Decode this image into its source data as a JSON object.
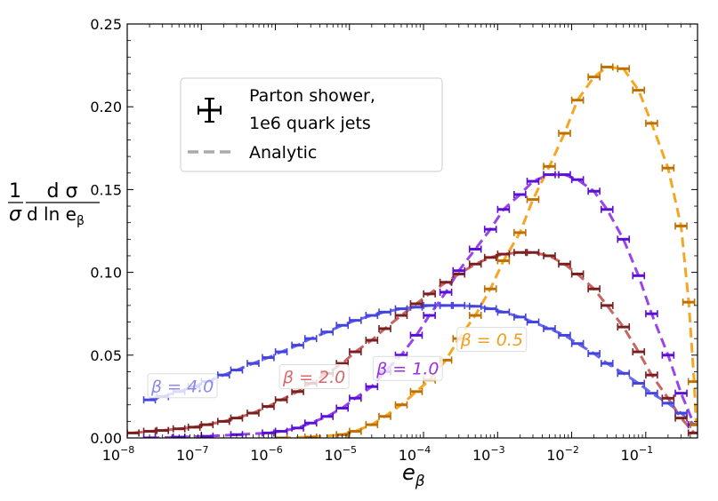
{
  "chart_data": {
    "type": "line",
    "xscale": "log",
    "xlim": [
      1e-08,
      0.5
    ],
    "ylim": [
      0,
      0.25
    ],
    "ylabel": {
      "top": "1",
      "bottom": "σ",
      "numerator": "d σ",
      "denominator": "d ln e",
      "sub": "β"
    },
    "xlabel": {
      "main": "e",
      "sub": "β"
    },
    "xticks": [
      {
        "v": 1e-08,
        "label": "10",
        "exp": "−8"
      },
      {
        "v": 1e-07,
        "label": "10",
        "exp": "−7"
      },
      {
        "v": 1e-06,
        "label": "10",
        "exp": "−6"
      },
      {
        "v": 1e-05,
        "label": "10",
        "exp": "−5"
      },
      {
        "v": 0.0001,
        "label": "10",
        "exp": "−4"
      },
      {
        "v": 0.001,
        "label": "10",
        "exp": "−3"
      },
      {
        "v": 0.01,
        "label": "10",
        "exp": "−2"
      },
      {
        "v": 0.1,
        "label": "10",
        "exp": "−1"
      }
    ],
    "yticks": [
      {
        "v": 0.0,
        "label": "0.00"
      },
      {
        "v": 0.05,
        "label": "0.05"
      },
      {
        "v": 0.1,
        "label": "0.10"
      },
      {
        "v": 0.15,
        "label": "0.15"
      },
      {
        "v": 0.2,
        "label": "0.20"
      },
      {
        "v": 0.25,
        "label": "0.25"
      }
    ],
    "legend": {
      "position": "upper-left",
      "entries": [
        {
          "label_line1": "Parton shower,",
          "label_line2": "1e6 quark jets",
          "marker": "errorbar",
          "color": "#000000"
        },
        {
          "label": "Analytic",
          "marker": "dashed",
          "color": "#aaaaaa"
        }
      ]
    },
    "series": [
      {
        "beta_label": "β = 4.0",
        "shower_color": "#4444dd",
        "analytic_color": "#6a6af0",
        "label_color": "#8a8aee",
        "points": [
          [
            2e-08,
            0.023
          ],
          [
            3e-08,
            0.025
          ],
          [
            5e-08,
            0.028
          ],
          [
            8e-08,
            0.031
          ],
          [
            1.2e-07,
            0.034
          ],
          [
            2e-07,
            0.038
          ],
          [
            3e-07,
            0.041
          ],
          [
            5e-07,
            0.045
          ],
          [
            8e-07,
            0.0485
          ],
          [
            1.2e-06,
            0.052
          ],
          [
            2e-06,
            0.056
          ],
          [
            3e-06,
            0.06
          ],
          [
            5e-06,
            0.064
          ],
          [
            8e-06,
            0.068
          ],
          [
            1.2e-05,
            0.071
          ],
          [
            2e-05,
            0.074
          ],
          [
            3e-05,
            0.076
          ],
          [
            5e-05,
            0.078
          ],
          [
            8e-05,
            0.079
          ],
          [
            0.00012,
            0.08
          ],
          [
            0.0002,
            0.08
          ],
          [
            0.0003,
            0.08
          ],
          [
            0.0005,
            0.0795
          ],
          [
            0.0008,
            0.078
          ],
          [
            0.0012,
            0.076
          ],
          [
            0.002,
            0.073
          ],
          [
            0.003,
            0.07
          ],
          [
            0.005,
            0.066
          ],
          [
            0.008,
            0.062
          ],
          [
            0.012,
            0.057
          ],
          [
            0.02,
            0.051
          ],
          [
            0.03,
            0.045
          ],
          [
            0.05,
            0.039
          ],
          [
            0.08,
            0.033
          ],
          [
            0.12,
            0.027
          ],
          [
            0.2,
            0.021
          ],
          [
            0.3,
            0.015
          ],
          [
            0.45,
            0.008
          ]
        ]
      },
      {
        "beta_label": "β = 2.0",
        "shower_color": "#7a1f1f",
        "analytic_color": "#c86464",
        "label_color": "#d66a6a",
        "points": [
          [
            1.2e-08,
            0.003
          ],
          [
            2e-08,
            0.004
          ],
          [
            3e-08,
            0.0045
          ],
          [
            5e-08,
            0.0055
          ],
          [
            8e-08,
            0.0065
          ],
          [
            1.2e-07,
            0.008
          ],
          [
            2e-07,
            0.01
          ],
          [
            3e-07,
            0.012
          ],
          [
            5e-07,
            0.015
          ],
          [
            8e-07,
            0.019
          ],
          [
            1.2e-06,
            0.023
          ],
          [
            2e-06,
            0.028
          ],
          [
            3e-06,
            0.033
          ],
          [
            5e-06,
            0.039
          ],
          [
            8e-06,
            0.045
          ],
          [
            1.2e-05,
            0.052
          ],
          [
            2e-05,
            0.059
          ],
          [
            3e-05,
            0.066
          ],
          [
            5e-05,
            0.074
          ],
          [
            8e-05,
            0.081
          ],
          [
            0.00012,
            0.087
          ],
          [
            0.0002,
            0.094
          ],
          [
            0.0003,
            0.099
          ],
          [
            0.0005,
            0.105
          ],
          [
            0.0008,
            0.109
          ],
          [
            0.0012,
            0.111
          ],
          [
            0.002,
            0.112
          ],
          [
            0.003,
            0.112
          ],
          [
            0.005,
            0.11
          ],
          [
            0.008,
            0.105
          ],
          [
            0.012,
            0.099
          ],
          [
            0.02,
            0.09
          ],
          [
            0.03,
            0.08
          ],
          [
            0.05,
            0.067
          ],
          [
            0.08,
            0.052
          ],
          [
            0.12,
            0.038
          ],
          [
            0.2,
            0.024
          ],
          [
            0.3,
            0.012
          ],
          [
            0.45,
            0.003
          ]
        ]
      },
      {
        "beta_label": "β = 1.0",
        "shower_color": "#5a0fd6",
        "analytic_color": "#9a45ea",
        "label_color": "#9b30e0",
        "points": [
          [
            2e-08,
            0.0
          ],
          [
            5e-08,
            0.0005
          ],
          [
            1.2e-07,
            0.001
          ],
          [
            3e-07,
            0.002
          ],
          [
            8e-07,
            0.003
          ],
          [
            1.2e-06,
            0.004
          ],
          [
            2e-06,
            0.006
          ],
          [
            3e-06,
            0.009
          ],
          [
            5e-06,
            0.013
          ],
          [
            8e-06,
            0.018
          ],
          [
            1.2e-05,
            0.024
          ],
          [
            2e-05,
            0.031
          ],
          [
            3e-05,
            0.04
          ],
          [
            5e-05,
            0.05
          ],
          [
            8e-05,
            0.062
          ],
          [
            0.00012,
            0.074
          ],
          [
            0.0002,
            0.088
          ],
          [
            0.0003,
            0.101
          ],
          [
            0.0005,
            0.114
          ],
          [
            0.0008,
            0.126
          ],
          [
            0.0012,
            0.138
          ],
          [
            0.002,
            0.147
          ],
          [
            0.003,
            0.155
          ],
          [
            0.005,
            0.159
          ],
          [
            0.008,
            0.159
          ],
          [
            0.012,
            0.156
          ],
          [
            0.02,
            0.149
          ],
          [
            0.03,
            0.138
          ],
          [
            0.05,
            0.12
          ],
          [
            0.08,
            0.098
          ],
          [
            0.12,
            0.075
          ],
          [
            0.2,
            0.05
          ],
          [
            0.3,
            0.027
          ],
          [
            0.45,
            0.008
          ]
        ]
      },
      {
        "beta_label": "β = 0.5",
        "shower_color": "#c07000",
        "analytic_color": "#f5a623",
        "label_color": "#f0a020",
        "points": [
          [
            1.2e-06,
            0.0
          ],
          [
            3e-06,
            0.0005
          ],
          [
            8e-06,
            0.002
          ],
          [
            1.2e-05,
            0.004
          ],
          [
            2e-05,
            0.008
          ],
          [
            3e-05,
            0.013
          ],
          [
            5e-05,
            0.02
          ],
          [
            8e-05,
            0.028
          ],
          [
            0.00012,
            0.035
          ],
          [
            0.0002,
            0.047
          ],
          [
            0.0003,
            0.06
          ],
          [
            0.0005,
            0.074
          ],
          [
            0.0008,
            0.09
          ],
          [
            0.0012,
            0.107
          ],
          [
            0.002,
            0.124
          ],
          [
            0.003,
            0.144
          ],
          [
            0.005,
            0.164
          ],
          [
            0.008,
            0.184
          ],
          [
            0.012,
            0.204
          ],
          [
            0.02,
            0.218
          ],
          [
            0.03,
            0.224
          ],
          [
            0.05,
            0.223
          ],
          [
            0.08,
            0.21
          ],
          [
            0.12,
            0.19
          ],
          [
            0.2,
            0.163
          ],
          [
            0.3,
            0.128
          ],
          [
            0.38,
            0.082
          ],
          [
            0.45,
            0.034
          ],
          [
            0.48,
            0.008
          ]
        ]
      }
    ]
  }
}
